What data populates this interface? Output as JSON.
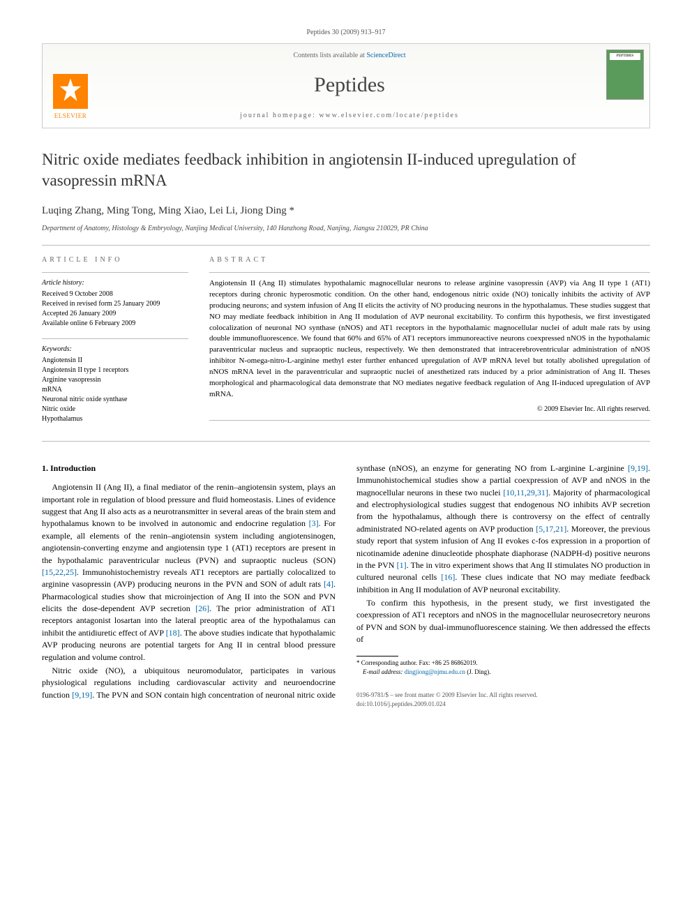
{
  "journal_ref": "Peptides 30 (2009) 913–917",
  "masthead": {
    "contents_prefix": "Contents lists available at ",
    "sciencedirect": "ScienceDirect",
    "journal_name": "Peptides",
    "homepage_label": "journal homepage: www.elsevier.com/locate/peptides",
    "publisher": "ELSEVIER",
    "cover_label": "PEPTIDES"
  },
  "title": "Nitric oxide mediates feedback inhibition in angiotensin II-induced upregulation of vasopressin mRNA",
  "authors": "Luqing Zhang, Ming Tong, Ming Xiao, Lei Li, Jiong Ding *",
  "affiliation": "Department of Anatomy, Histology & Embryology, Nanjing Medical University, 140 Hanzhong Road, Nanjing, Jiangsu 210029, PR China",
  "article_info": {
    "heading": "ARTICLE INFO",
    "history_label": "Article history:",
    "history": [
      "Received 9 October 2008",
      "Received in revised form 25 January 2009",
      "Accepted 26 January 2009",
      "Available online 6 February 2009"
    ],
    "keywords_label": "Keywords:",
    "keywords": [
      "Angiotensin II",
      "Angiotensin II type 1 receptors",
      "Arginine vasopressin",
      "mRNA",
      "Neuronal nitric oxide synthase",
      "Nitric oxide",
      "Hypothalamus"
    ]
  },
  "abstract": {
    "heading": "ABSTRACT",
    "text": "Angiotensin II (Ang II) stimulates hypothalamic magnocellular neurons to release arginine vasopressin (AVP) via Ang II type 1 (AT1) receptors during chronic hyperosmotic condition. On the other hand, endogenous nitric oxide (NO) tonically inhibits the activity of AVP producing neurons; and system infusion of Ang II elicits the activity of NO producing neurons in the hypothalamus. These studies suggest that NO may mediate feedback inhibition in Ang II modulation of AVP neuronal excitability. To confirm this hypothesis, we first investigated colocalization of neuronal NO synthase (nNOS) and AT1 receptors in the hypothalamic magnocellular nuclei of adult male rats by using double immunofluorescence. We found that 60% and 65% of AT1 receptors immunoreactive neurons coexpressed nNOS in the hypothalamic paraventricular nucleus and supraoptic nucleus, respectively. We then demonstrated that intracerebroventricular administration of nNOS inhibitor N-omega-nitro-L-arginine methyl ester further enhanced upregulation of AVP mRNA level but totally abolished upregulation of nNOS mRNA level in the paraventricular and supraoptic nuclei of anesthetized rats induced by a prior administration of Ang II. Theses morphological and pharmacological data demonstrate that NO mediates negative feedback regulation of Ang II-induced upregulation of AVP mRNA.",
    "copyright": "© 2009 Elsevier Inc. All rights reserved."
  },
  "body": {
    "section_heading": "1. Introduction",
    "para1_a": "Angiotensin II (Ang II), a final mediator of the renin–angiotensin system, plays an important role in regulation of blood pressure and fluid homeostasis. Lines of evidence suggest that Ang II also acts as a neurotransmitter in several areas of the brain stem and hypothalamus known to be involved in autonomic and endocrine regulation ",
    "ref3": "[3]",
    "para1_b": ". For example, all elements of the renin–angiotensin system including angiotensinogen, angiotensin-converting enzyme and angiotensin type 1 (AT1) receptors are present in the hypothalamic paraventricular nucleus (PVN) and supraoptic nucleus (SON) ",
    "ref152225": "[15,22,25]",
    "para1_c": ". Immunohistochemistry reveals AT1 receptors are partially colocalized to arginine vasopressin (AVP) producing neurons in the PVN and SON of adult rats ",
    "ref4": "[4]",
    "para1_d": ". Pharmacological studies show that microinjection of Ang II into the SON and PVN elicits the dose-dependent AVP secretion ",
    "ref26": "[26]",
    "para1_e": ". The prior administration of AT1 receptors antagonist losartan into the lateral preoptic area of the hypothalamus can inhibit the antidiuretic effect of AVP ",
    "ref18": "[18]",
    "para1_f": ". The above studies indicate that hypothalamic AVP producing neurons are potential targets for Ang II in central blood pressure regulation and volume control.",
    "para2_a": "Nitric oxide (NO), a ubiquitous neuromodulator, participates in various physiological regulations including cardiovascular activity and neuroendocrine function ",
    "ref919a": "[9,19]",
    "para2_b": ". The PVN and SON contain high concentration of neuronal nitric oxide synthase (nNOS), an enzyme for generating NO from L-arginine ",
    "ref919b": "[9,19]",
    "para2_c": ". Immunohistochemical studies show a partial coexpression of AVP and nNOS in the magnocellular neurons in these two nuclei ",
    "ref10112931": "[10,11,29,31]",
    "para2_d": ". Majority of pharmacological and electrophysiological studies suggest that endogenous NO inhibits AVP secretion from the hypothalamus, although there is controversy on the effect of centrally administrated NO-related agents on AVP production ",
    "ref51721": "[5,17,21]",
    "para2_e": ". Moreover, the previous study report that system infusion of Ang II evokes c-fos expression in a proportion of nicotinamide adenine dinucleotide phosphate diaphorase (NADPH-d) positive neurons in the PVN ",
    "ref1": "[1]",
    "para2_f": ". The in vitro experiment shows that Ang II stimulates NO production in cultured neuronal cells ",
    "ref16": "[16]",
    "para2_g": ". These clues indicate that NO may mediate feedback inhibition in Ang II modulation of AVP neuronal excitability.",
    "para3": "To confirm this hypothesis, in the present study, we first investigated the coexpression of AT1 receptors and nNOS in the magnocellular neurosecretory neurons of PVN and SON by dual-immunofluorescence staining. We then addressed the effects of"
  },
  "footnote": {
    "corresponding": "* Corresponding author. Fax: +86 25 86862019.",
    "email_label": "E-mail address: ",
    "email": "dingjiong@njmu.edu.cn",
    "email_suffix": " (J. Ding)."
  },
  "footer": {
    "line1": "0196-9781/$ – see front matter © 2009 Elsevier Inc. All rights reserved.",
    "line2": "doi:10.1016/j.peptides.2009.01.024"
  },
  "colors": {
    "link": "#0066aa",
    "elsevier_orange": "#ff8200",
    "cover_green": "#5a9a5a",
    "rule_gray": "#bbbbbb"
  }
}
